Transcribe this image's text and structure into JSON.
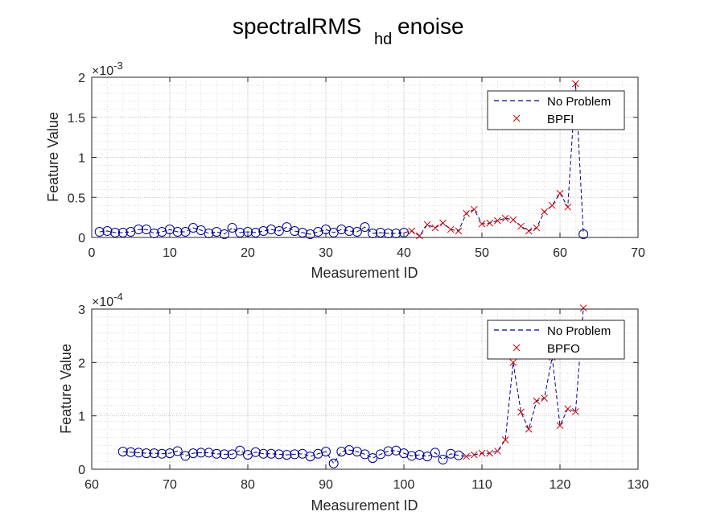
{
  "title": {
    "main": "spectralRMS",
    "sub": "hd",
    "tail": "enoise"
  },
  "colors": {
    "no_problem": "#00008b",
    "fault": "#cc0000",
    "grid": "#c8c8c8",
    "axis": "#262626"
  },
  "chart_data": [
    {
      "type": "line",
      "xlabel": "Measurement ID",
      "ylabel": "Feature Value",
      "xlim": [
        0,
        70
      ],
      "ylim": [
        0,
        0.002
      ],
      "xticks": [
        "0",
        "10",
        "20",
        "30",
        "40",
        "50",
        "60",
        "70"
      ],
      "yticks": [
        "0",
        "0.5",
        "1",
        "1.5",
        "2"
      ],
      "exponent_label": "×10",
      "exponent_power": "-3",
      "grid": true,
      "minor_grid": true,
      "legend": {
        "position": "top-right",
        "entries": [
          "No Problem",
          "BPFI"
        ]
      },
      "series": [
        {
          "name": "No Problem",
          "style": "dashed-line-with-circles",
          "x": [
            1,
            2,
            3,
            4,
            5,
            6,
            7,
            8,
            9,
            10,
            11,
            12,
            13,
            14,
            15,
            16,
            17,
            18,
            19,
            20,
            21,
            22,
            23,
            24,
            25,
            26,
            27,
            28,
            29,
            30,
            31,
            32,
            33,
            34,
            35,
            36,
            37,
            38,
            39,
            40,
            41,
            42,
            43,
            44,
            45,
            46,
            47,
            48,
            49,
            50,
            51,
            52,
            53,
            54,
            55,
            56,
            57,
            58,
            59,
            60,
            61,
            62,
            63
          ],
          "y": [
            7e-05,
            8e-05,
            6e-05,
            6e-05,
            7e-05,
            0.0001,
            0.0001,
            5e-05,
            7e-05,
            0.0001,
            7e-05,
            7e-05,
            0.00012,
            9e-05,
            5e-05,
            7e-05,
            4e-05,
            0.00012,
            6e-05,
            7e-05,
            6e-05,
            8e-05,
            0.0001,
            8e-05,
            0.00013,
            8e-05,
            6e-05,
            4e-05,
            7e-05,
            0.0001,
            6e-05,
            0.0001,
            8e-05,
            7e-05,
            0.00013,
            5e-05,
            6e-05,
            5e-05,
            5e-05,
            6e-05,
            8e-05,
            2e-05,
            0.00016,
            0.00012,
            0.00018,
            0.0001,
            8e-05,
            0.0003,
            0.00035,
            0.00017,
            0.00018,
            0.00021,
            0.00024,
            0.00022,
            0.00014,
            8e-05,
            0.00012,
            0.00032,
            0.0004,
            0.00055,
            0.00038,
            0.00192,
            4e-05
          ],
          "circle_x": [
            1,
            2,
            3,
            4,
            5,
            6,
            7,
            8,
            9,
            10,
            11,
            12,
            13,
            14,
            15,
            16,
            17,
            18,
            19,
            20,
            21,
            22,
            23,
            24,
            25,
            26,
            27,
            28,
            29,
            30,
            31,
            32,
            33,
            34,
            35,
            36,
            37,
            38,
            39,
            40,
            63
          ]
        },
        {
          "name": "BPFI",
          "style": "x-markers",
          "x": [
            41,
            42,
            43,
            44,
            45,
            46,
            47,
            48,
            49,
            50,
            51,
            52,
            53,
            54,
            55,
            56,
            57,
            58,
            59,
            60,
            61,
            62
          ],
          "y": [
            8e-05,
            2e-05,
            0.00016,
            0.00012,
            0.00018,
            0.0001,
            8e-05,
            0.0003,
            0.00035,
            0.00017,
            0.00018,
            0.00021,
            0.00024,
            0.00022,
            0.00014,
            8e-05,
            0.00012,
            0.00032,
            0.0004,
            0.00055,
            0.00038,
            0.00192
          ]
        }
      ]
    },
    {
      "type": "line",
      "xlabel": "Measurement ID",
      "ylabel": "Feature Value",
      "xlim": [
        60,
        130
      ],
      "ylim": [
        0,
        0.0003
      ],
      "xticks": [
        "60",
        "70",
        "80",
        "90",
        "100",
        "110",
        "120",
        "130"
      ],
      "yticks": [
        "0",
        "1",
        "2",
        "3"
      ],
      "exponent_label": "×10",
      "exponent_power": "-4",
      "grid": true,
      "minor_grid": true,
      "legend": {
        "position": "top-right",
        "entries": [
          "No Problem",
          "BPFO"
        ]
      },
      "series": [
        {
          "name": "No Problem",
          "style": "dashed-line-with-circles",
          "x": [
            64,
            65,
            66,
            67,
            68,
            69,
            70,
            71,
            72,
            73,
            74,
            75,
            76,
            77,
            78,
            79,
            80,
            81,
            82,
            83,
            84,
            85,
            86,
            87,
            88,
            89,
            90,
            91,
            92,
            93,
            94,
            95,
            96,
            97,
            98,
            99,
            100,
            101,
            102,
            103,
            104,
            105,
            106,
            107,
            108,
            109,
            110,
            111,
            112,
            113,
            114,
            115,
            116,
            117,
            118,
            119,
            120,
            121,
            122,
            123
          ],
          "y": [
            3.3e-05,
            3.2e-05,
            3.1e-05,
            3e-05,
            3e-05,
            2.9e-05,
            3e-05,
            3.4e-05,
            2.5e-05,
            3e-05,
            3.1e-05,
            3.1e-05,
            2.9e-05,
            2.8e-05,
            2.8e-05,
            3.5e-05,
            2.7e-05,
            3.2e-05,
            2.9e-05,
            2.9e-05,
            2.8e-05,
            2.7e-05,
            2.8e-05,
            2.9e-05,
            2.4e-05,
            2.9e-05,
            3.3e-05,
            1.1e-05,
            3.3e-05,
            3.6e-05,
            3.3e-05,
            2.8e-05,
            2.1e-05,
            2.8e-05,
            3.4e-05,
            3.5e-05,
            3e-05,
            2.5e-05,
            2.7e-05,
            2.4e-05,
            3.1e-05,
            1.8e-05,
            2.9e-05,
            2.6e-05,
            2.4e-05,
            2.7e-05,
            3e-05,
            3e-05,
            3.4e-05,
            5.5e-05,
            0.0002,
            0.000107,
            7.5e-05,
            0.000128,
            0.000133,
            0.00021,
            8.2e-05,
            0.000113,
            0.000108,
            0.000302
          ],
          "circle_x": [
            64,
            65,
            66,
            67,
            68,
            69,
            70,
            71,
            72,
            73,
            74,
            75,
            76,
            77,
            78,
            79,
            80,
            81,
            82,
            83,
            84,
            85,
            86,
            87,
            88,
            89,
            90,
            91,
            92,
            93,
            94,
            95,
            96,
            97,
            98,
            99,
            100,
            101,
            102,
            103,
            104,
            105,
            106,
            107
          ]
        },
        {
          "name": "BPFO",
          "style": "x-markers",
          "x": [
            108,
            109,
            110,
            111,
            112,
            113,
            114,
            115,
            116,
            117,
            118,
            119,
            120,
            121,
            122,
            123
          ],
          "y": [
            2.4e-05,
            2.7e-05,
            3e-05,
            3e-05,
            3.4e-05,
            5.5e-05,
            0.0002,
            0.000107,
            7.5e-05,
            0.000128,
            0.000133,
            0.00021,
            8.2e-05,
            0.000113,
            0.000108,
            0.000302
          ]
        }
      ]
    }
  ]
}
